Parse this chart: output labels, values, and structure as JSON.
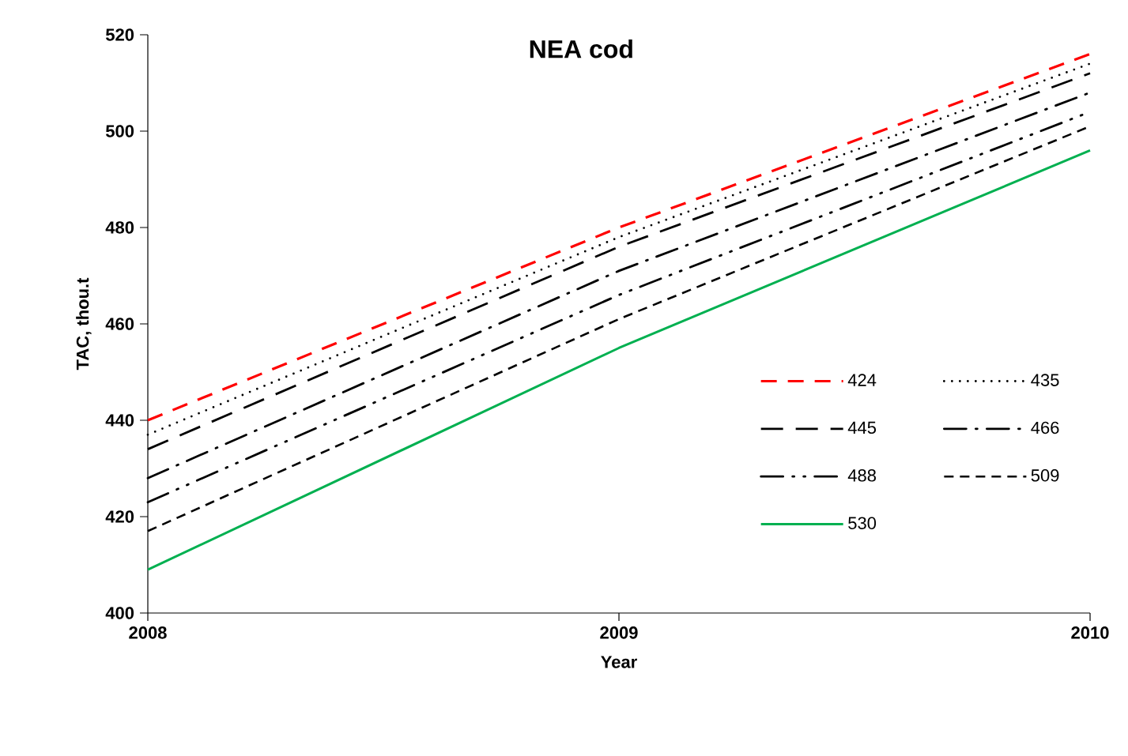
{
  "chart_data": {
    "type": "line",
    "title": "NEA cod",
    "xlabel": "Year",
    "ylabel": "TAC, thou.t",
    "x": [
      2008,
      2009,
      2010
    ],
    "xlim": [
      2008,
      2010
    ],
    "xticks": [
      2008,
      2009,
      2010
    ],
    "ylim": [
      400,
      520
    ],
    "yticks": [
      400,
      420,
      440,
      460,
      480,
      500,
      520
    ],
    "grid": false,
    "legend": "bottom right",
    "marker": "none",
    "series": [
      {
        "name": "424",
        "color": "#ff0000",
        "line_style": "dashed",
        "values": [
          440,
          480,
          516
        ]
      },
      {
        "name": "435",
        "color": "#000000",
        "line_style": "dotted",
        "values": [
          437,
          478,
          514
        ]
      },
      {
        "name": "445",
        "color": "#000000",
        "line_style": "longdash",
        "values": [
          434,
          476,
          512
        ]
      },
      {
        "name": "466",
        "color": "#000000",
        "line_style": "dashdot",
        "values": [
          428,
          471,
          508
        ]
      },
      {
        "name": "488",
        "color": "#000000",
        "line_style": "dashdotdot",
        "values": [
          423,
          466,
          504
        ]
      },
      {
        "name": "509",
        "color": "#000000",
        "line_style": "shortdash",
        "values": [
          417,
          461,
          501
        ]
      },
      {
        "name": "530",
        "color": "#00b050",
        "line_style": "solid",
        "values": [
          409,
          455,
          496
        ]
      }
    ]
  }
}
